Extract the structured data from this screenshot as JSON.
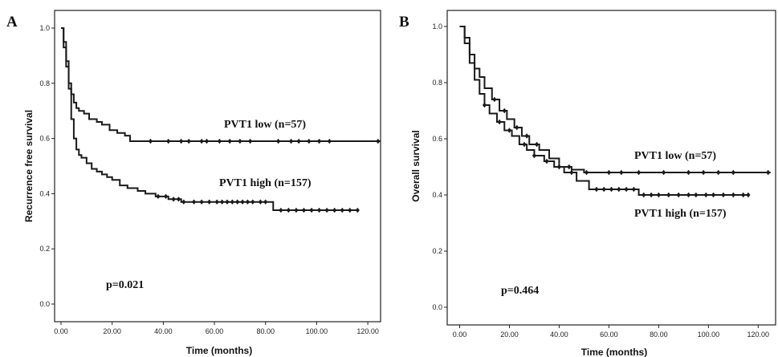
{
  "chart_data": [
    {
      "panel_label": "A",
      "type": "line",
      "subtype": "kaplan-meier",
      "ylabel": "Recurrence free survival",
      "xlabel": "Time (months)",
      "xlim": [
        0,
        125
      ],
      "ylim": [
        0,
        1.0
      ],
      "xticks": [
        "0.00",
        "20.00",
        "40.00",
        "60.00",
        "80.00",
        "100.00",
        "120.00"
      ],
      "yticks": [
        "0.0",
        "0.2",
        "0.4",
        "0.6",
        "0.8",
        "1.0"
      ],
      "annotation": "p=0.021",
      "series": [
        {
          "name": "PVT1 low (n=57)",
          "x": [
            0,
            1,
            2,
            3,
            4,
            5,
            6,
            7,
            9,
            11,
            14,
            16,
            19,
            22,
            25,
            27,
            125
          ],
          "y": [
            1.0,
            0.93,
            0.86,
            0.8,
            0.76,
            0.73,
            0.71,
            0.7,
            0.69,
            0.67,
            0.66,
            0.65,
            0.63,
            0.62,
            0.61,
            0.59,
            0.59
          ],
          "censor_x": [
            35,
            42,
            47,
            50,
            55,
            57,
            62,
            66,
            70,
            74,
            85,
            90,
            93,
            97,
            101,
            105,
            124
          ]
        },
        {
          "name": "PVT1 high (n=157)",
          "x": [
            0,
            1,
            2,
            3,
            4,
            5,
            6,
            7,
            8,
            10,
            12,
            14,
            16,
            18,
            20,
            23,
            26,
            30,
            33,
            37,
            42,
            47,
            60,
            70,
            83,
            85,
            116
          ],
          "y": [
            1.0,
            0.95,
            0.88,
            0.78,
            0.67,
            0.6,
            0.56,
            0.54,
            0.53,
            0.51,
            0.49,
            0.48,
            0.47,
            0.46,
            0.45,
            0.43,
            0.42,
            0.41,
            0.4,
            0.39,
            0.38,
            0.37,
            0.37,
            0.37,
            0.34,
            0.34,
            0.34
          ],
          "censor_x": [
            38,
            41,
            44,
            46,
            48,
            52,
            55,
            58,
            61,
            63,
            65,
            67,
            69,
            71,
            73,
            75,
            78,
            80,
            86,
            89,
            92,
            95,
            98,
            101,
            104,
            107,
            110,
            113,
            116
          ]
        }
      ]
    },
    {
      "panel_label": "B",
      "type": "line",
      "subtype": "kaplan-meier",
      "ylabel": "Overall survival",
      "xlabel": "Time (months)",
      "xlim": [
        -5,
        127
      ],
      "ylim": [
        0,
        1.0
      ],
      "xticks": [
        "0.00",
        "20.00",
        "40.00",
        "60.00",
        "80.00",
        "100.00",
        "120.00"
      ],
      "yticks": [
        "0.0",
        "0.2",
        "0.4",
        "0.6",
        "0.8",
        "1.0"
      ],
      "annotation": "p=0.464",
      "series": [
        {
          "name": "PVT1 low (n=57)",
          "x": [
            0,
            2,
            4,
            6,
            8,
            10,
            13,
            16,
            19,
            22,
            25,
            28,
            32,
            36,
            40,
            45,
            50,
            125
          ],
          "y": [
            1.0,
            0.96,
            0.9,
            0.85,
            0.82,
            0.78,
            0.74,
            0.7,
            0.67,
            0.64,
            0.61,
            0.58,
            0.56,
            0.53,
            0.5,
            0.49,
            0.48,
            0.48
          ],
          "censor_x": [
            14,
            18,
            23,
            27,
            31,
            44,
            51,
            60,
            65,
            72,
            82,
            92,
            98,
            104,
            110,
            124
          ]
        },
        {
          "name": "PVT1 high (n=157)",
          "x": [
            0,
            2,
            4,
            6,
            8,
            10,
            12,
            15,
            18,
            21,
            24,
            27,
            30,
            34,
            38,
            42,
            47,
            52,
            70,
            72,
            116
          ],
          "y": [
            1.0,
            0.94,
            0.87,
            0.81,
            0.76,
            0.72,
            0.69,
            0.66,
            0.63,
            0.61,
            0.58,
            0.56,
            0.54,
            0.52,
            0.5,
            0.48,
            0.45,
            0.42,
            0.42,
            0.4,
            0.4
          ],
          "censor_x": [
            10,
            16,
            20,
            26,
            30,
            35,
            40,
            45,
            55,
            58,
            61,
            64,
            67,
            70,
            74,
            77,
            80,
            84,
            88,
            92,
            95,
            99,
            102,
            106,
            110,
            114,
            116
          ]
        }
      ]
    }
  ]
}
